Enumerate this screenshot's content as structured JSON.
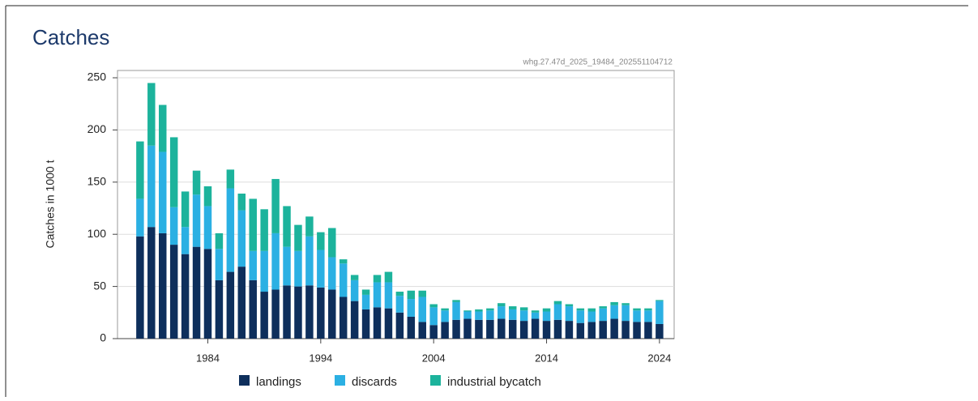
{
  "chart_data": {
    "type": "stacked-bar",
    "title": "Catches",
    "subtitle": "whg.27.47d_2025_19484_202551104712",
    "y_label": "Catches in 1000 t",
    "x": [
      1978,
      1979,
      1980,
      1981,
      1982,
      1983,
      1984,
      1985,
      1986,
      1987,
      1988,
      1989,
      1990,
      1991,
      1992,
      1993,
      1994,
      1995,
      1996,
      1997,
      1998,
      1999,
      2000,
      2001,
      2002,
      2003,
      2004,
      2005,
      2006,
      2007,
      2008,
      2009,
      2010,
      2011,
      2012,
      2013,
      2014,
      2015,
      2016,
      2017,
      2018,
      2019,
      2020,
      2021,
      2022,
      2023,
      2024
    ],
    "xlim": [
      1976,
      2025.3
    ],
    "xticks": [
      1984,
      1994,
      2004,
      2014,
      2024
    ],
    "ylim": [
      0,
      257
    ],
    "yticks": [
      0,
      50,
      100,
      150,
      200,
      250
    ],
    "grid": true,
    "series": [
      {
        "name": "landings",
        "color": "#0e2f5c",
        "values": [
          98,
          107,
          101,
          90,
          81,
          88,
          86,
          56,
          64,
          69,
          56,
          45,
          47,
          51,
          50,
          51,
          49,
          47,
          40,
          36,
          28,
          30,
          29,
          25,
          21,
          16,
          13,
          16,
          18,
          19,
          18,
          18,
          19,
          18,
          17,
          19,
          17,
          18,
          17,
          15,
          16,
          17,
          19,
          17,
          16,
          16,
          14
        ]
      },
      {
        "name": "discards",
        "color": "#2bb0e3",
        "values": [
          36,
          78,
          78,
          36,
          26,
          50,
          41,
          30,
          80,
          54,
          28,
          39,
          54,
          37,
          34,
          47,
          36,
          31,
          32,
          20,
          14,
          24,
          25,
          16,
          17,
          24,
          17,
          11,
          17,
          7,
          8,
          9,
          12,
          10,
          10,
          6,
          9,
          15,
          14,
          12,
          10,
          12,
          13,
          15,
          11,
          11,
          22
        ]
      },
      {
        "name": "industrial bycatch",
        "color": "#1cb39c",
        "values": [
          55,
          60,
          45,
          67,
          34,
          23,
          19,
          15,
          18,
          16,
          50,
          40,
          52,
          39,
          25,
          19,
          17,
          28,
          4,
          5,
          5,
          7,
          10,
          4,
          8,
          6,
          3,
          2,
          2,
          1,
          2,
          2,
          3,
          3,
          3,
          2,
          3,
          3,
          2,
          2,
          3,
          2,
          3,
          2,
          2,
          2,
          1
        ]
      }
    ]
  }
}
